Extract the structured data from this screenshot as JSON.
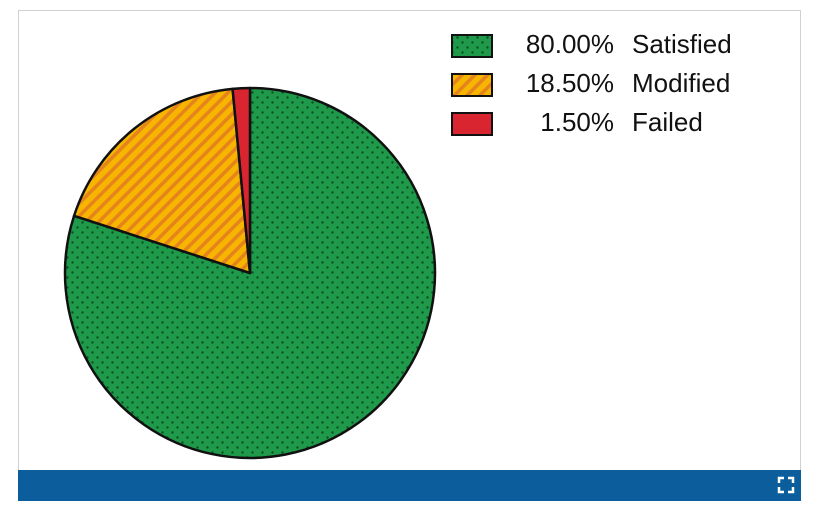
{
  "chart_data": {
    "type": "pie",
    "categories": [
      "Satisfied",
      "Modified",
      "Failed"
    ],
    "values": [
      80,
      18.5,
      1.5
    ],
    "value_labels": [
      "80.00%",
      "18.50%",
      "1.50%"
    ],
    "colors": [
      "#1f9a4a",
      "#f7b500",
      "#d9252f"
    ],
    "patterns": [
      "dots",
      "stripes",
      "solid"
    ],
    "legend": "upper right"
  }
}
